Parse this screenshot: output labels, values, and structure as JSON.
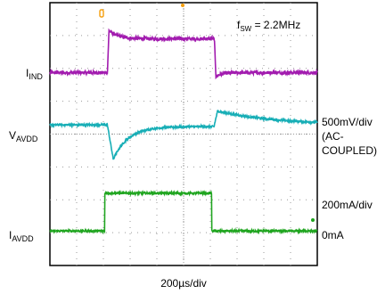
{
  "chart_data": {
    "type": "line",
    "annotation_fsw": {
      "main": "f",
      "sub": "SW",
      "rest": " = 2.2MHz"
    },
    "x_label": "200µs/div",
    "x_range_div": [
      0,
      10
    ],
    "y_range_div": [
      0,
      8
    ],
    "grid": true,
    "series": [
      {
        "name_main": "I",
        "name_sub": "IND",
        "color": "#a21caf",
        "level_low_div": 5.87,
        "level_high_div": 6.9,
        "t_rise_div": 2.15,
        "t_fall_div": 6.15,
        "noise_div": 0.05
      },
      {
        "name_main": "V",
        "name_sub": "AVDD",
        "color": "#17aeb6",
        "scale_lines": [
          "500mV/div",
          "(AC-",
          "COUPLED)"
        ],
        "baseline_div": 4.28,
        "dip_div": 3.28,
        "bump_div": 4.7,
        "t_dip_div": 2.15,
        "t_bump_div": 6.15,
        "noise_div": 0.03
      },
      {
        "name_main": "I",
        "name_sub": "AVDD",
        "color": "#1fa51f",
        "scale_lines": [
          "200mA/div",
          "0mA"
        ],
        "level_low_div": 1.05,
        "level_high_div": 2.2,
        "t_rise_div": 2.05,
        "t_fall_div": 6.05,
        "noise_div": 0.03
      }
    ]
  }
}
